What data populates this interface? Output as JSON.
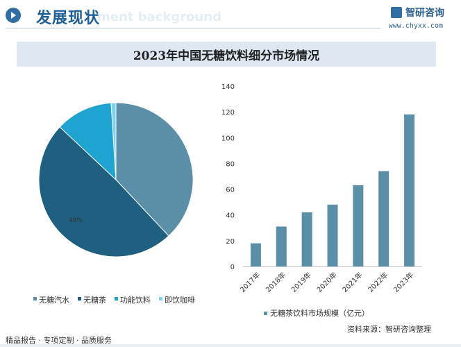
{
  "header": {
    "title": "发展现状",
    "watermark_text": "ment background",
    "brand_name": "智研咨询",
    "brand_url": "www.chyxx.com"
  },
  "footer": {
    "left_text": "精品报告 · 专项定制 · 品质服务",
    "source_text": "资料来源：智研咨询整理"
  },
  "colors": {
    "accent": "#1f5f96",
    "soda": "#5b8fa8",
    "tea": "#1f5f7f",
    "functional": "#1fa3d0",
    "coffee": "#7fd3f0",
    "bar": "#5b8fa8"
  },
  "chart_data": [
    {
      "type": "pie",
      "title": "2023年中国无糖饮料细分市场情况",
      "categories": [
        "无糖汽水",
        "无糖茶",
        "功能饮料",
        "即饮咖啡"
      ],
      "values": [
        38,
        49,
        12,
        1
      ],
      "data_labels": [
        "",
        "49%",
        "",
        ""
      ],
      "legend_placement": "bottom"
    },
    {
      "type": "bar",
      "categories": [
        "2017年",
        "2018年",
        "2019年",
        "2020年",
        "2021年",
        "2022年",
        "2023年"
      ],
      "series": [
        {
          "name": "无糖茶饮料市场规模（亿元）",
          "values": [
            18,
            31,
            42,
            48,
            63,
            74,
            118
          ]
        }
      ],
      "ylim": [
        0,
        140
      ],
      "yticks": [
        0,
        20,
        40,
        60,
        80,
        100,
        120,
        140
      ],
      "grid": false,
      "legend_placement": "bottom"
    }
  ]
}
